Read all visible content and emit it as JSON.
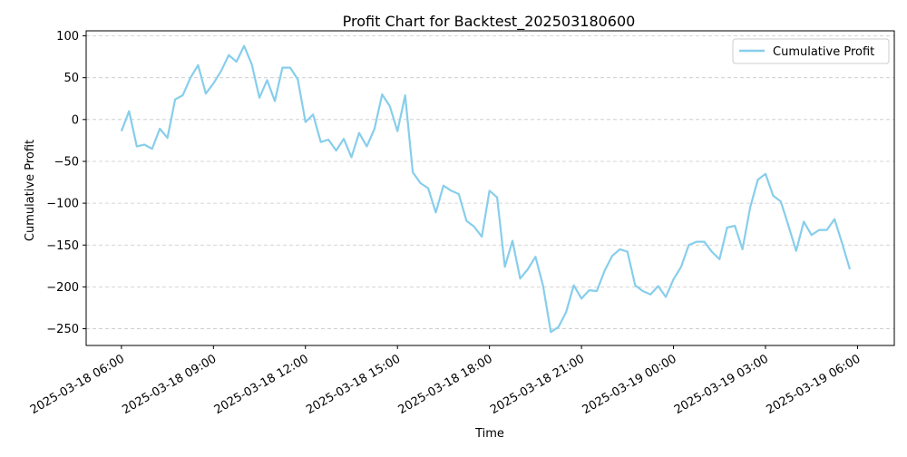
{
  "chart_data": {
    "type": "line",
    "title": "Profit Chart for Backtest_202503180600",
    "xlabel": "Time",
    "ylabel": "Cumulative Profit",
    "xlim": [
      "2025-03-18 04:51",
      "2025-03-19 07:12"
    ],
    "ylim": [
      -270,
      106
    ],
    "grid": "y-dashed",
    "legend_position": "top-right",
    "series_color": "#87ceeb",
    "x_ticks": [
      "2025-03-18 06:00",
      "2025-03-18 09:00",
      "2025-03-18 12:00",
      "2025-03-18 15:00",
      "2025-03-18 18:00",
      "2025-03-18 21:00",
      "2025-03-19 00:00",
      "2025-03-19 03:00",
      "2025-03-19 06:00"
    ],
    "y_ticks": [
      -250,
      -200,
      -150,
      -100,
      -50,
      0,
      50,
      100
    ],
    "series": [
      {
        "name": "Cumulative Profit",
        "x": [
          "2025-03-18 06:00",
          "2025-03-18 06:15",
          "2025-03-18 06:30",
          "2025-03-18 06:45",
          "2025-03-18 07:00",
          "2025-03-18 07:15",
          "2025-03-18 07:30",
          "2025-03-18 07:45",
          "2025-03-18 08:00",
          "2025-03-18 08:15",
          "2025-03-18 08:30",
          "2025-03-18 08:45",
          "2025-03-18 09:00",
          "2025-03-18 09:15",
          "2025-03-18 09:30",
          "2025-03-18 09:45",
          "2025-03-18 10:00",
          "2025-03-18 10:15",
          "2025-03-18 10:30",
          "2025-03-18 10:45",
          "2025-03-18 11:00",
          "2025-03-18 11:15",
          "2025-03-18 11:30",
          "2025-03-18 11:45",
          "2025-03-18 12:00",
          "2025-03-18 12:15",
          "2025-03-18 12:30",
          "2025-03-18 12:45",
          "2025-03-18 13:00",
          "2025-03-18 13:15",
          "2025-03-18 13:30",
          "2025-03-18 13:45",
          "2025-03-18 14:00",
          "2025-03-18 14:15",
          "2025-03-18 14:30",
          "2025-03-18 14:45",
          "2025-03-18 15:00",
          "2025-03-18 15:15",
          "2025-03-18 15:30",
          "2025-03-18 15:45",
          "2025-03-18 16:00",
          "2025-03-18 16:15",
          "2025-03-18 16:30",
          "2025-03-18 16:45",
          "2025-03-18 17:00",
          "2025-03-18 17:15",
          "2025-03-18 17:30",
          "2025-03-18 17:45",
          "2025-03-18 18:00",
          "2025-03-18 18:15",
          "2025-03-18 18:30",
          "2025-03-18 18:45",
          "2025-03-18 19:00",
          "2025-03-18 19:15",
          "2025-03-18 19:30",
          "2025-03-18 19:45",
          "2025-03-18 20:00",
          "2025-03-18 20:15",
          "2025-03-18 20:30",
          "2025-03-18 20:45",
          "2025-03-18 21:00",
          "2025-03-18 21:15",
          "2025-03-18 21:30",
          "2025-03-18 21:45",
          "2025-03-18 22:00",
          "2025-03-18 22:15",
          "2025-03-18 22:30",
          "2025-03-18 22:45",
          "2025-03-18 23:00",
          "2025-03-18 23:15",
          "2025-03-18 23:30",
          "2025-03-18 23:45",
          "2025-03-19 00:00",
          "2025-03-19 00:15",
          "2025-03-19 00:30",
          "2025-03-19 00:45",
          "2025-03-19 01:00",
          "2025-03-19 01:15",
          "2025-03-19 01:30",
          "2025-03-19 01:45",
          "2025-03-19 02:00",
          "2025-03-19 02:15",
          "2025-03-19 02:30",
          "2025-03-19 02:45",
          "2025-03-19 03:00",
          "2025-03-19 03:15",
          "2025-03-19 03:30",
          "2025-03-19 03:45",
          "2025-03-19 04:00",
          "2025-03-19 04:15",
          "2025-03-19 04:30",
          "2025-03-19 04:45",
          "2025-03-19 05:00",
          "2025-03-19 05:15",
          "2025-03-19 05:30",
          "2025-03-19 05:45"
        ],
        "values": [
          -14,
          10,
          -32,
          -30,
          -35,
          -11,
          -22,
          24,
          29,
          50,
          65,
          31,
          43,
          58,
          77,
          69,
          88,
          66,
          26,
          47,
          22,
          62,
          62,
          48,
          -3,
          6,
          -27,
          -24,
          -37,
          -23,
          -45,
          -16,
          -32,
          -11,
          30,
          16,
          -14,
          29,
          -63,
          -76,
          -82,
          -111,
          -79,
          -85,
          -89,
          -121,
          -128,
          -140,
          -85,
          -93,
          -176,
          -145,
          -190,
          -179,
          -164,
          -199,
          -254,
          -248,
          -230,
          -198,
          -214,
          -204,
          -205,
          -181,
          -163,
          -155,
          -158,
          -198,
          -205,
          -209,
          -199,
          -212,
          -191,
          -176,
          -150,
          -146,
          -146,
          -158,
          -167,
          -129,
          -127,
          -155,
          -105,
          -72,
          -65,
          -91,
          -98,
          -127,
          -157,
          -122,
          -138,
          -132,
          -132,
          -119,
          -148,
          -179
        ]
      }
    ]
  }
}
